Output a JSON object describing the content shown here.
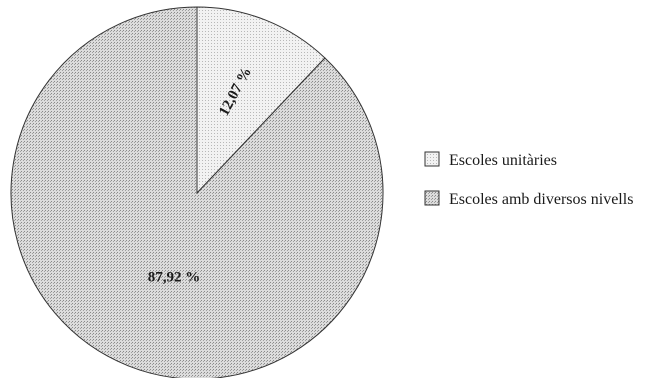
{
  "chart_data": {
    "type": "pie",
    "title": "",
    "start_angle_deg": 0,
    "direction": "clockwise",
    "slices": [
      {
        "label": "Escoles unitàries",
        "value": 12.07,
        "display": "12,07 %",
        "color": "#efefef"
      },
      {
        "label": "Escoles amb diversos nivells",
        "value": 87.92,
        "display": "87,92 %",
        "color": "#d4d4d4"
      }
    ],
    "legend": {
      "position": "right",
      "entries": [
        "Escoles unitàries",
        "Escoles amb diversos nivells"
      ]
    }
  }
}
